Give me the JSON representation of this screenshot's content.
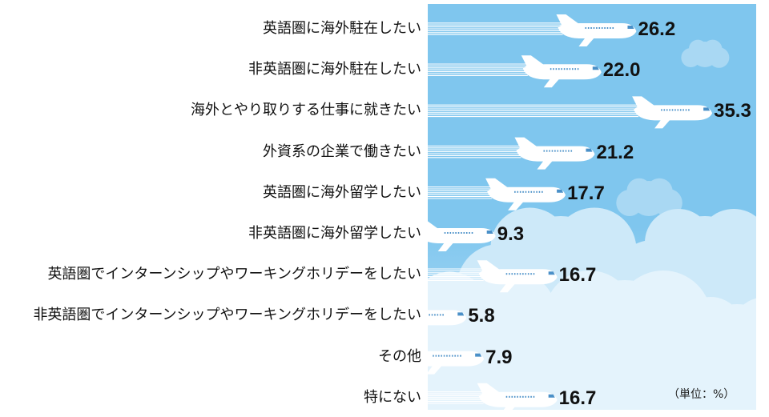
{
  "colors": {
    "sky_top": "#7fc6ee",
    "sky_bottom": "#bfe3f8",
    "cloud": "#cde9f9",
    "cloud_light": "#e4f3fc",
    "plane": "#ffffff",
    "plane_window": "#4a90c8",
    "trail": "#ffffff",
    "text": "#111111"
  },
  "unit_note": "（単位：%）",
  "chart_data": {
    "type": "bar",
    "orientation": "horizontal",
    "unit": "%",
    "xlim": [
      0,
      36
    ],
    "categories": [
      "英語圏に海外駐在したい",
      "非英語圏に海外駐在したい",
      "海外とやり取りする仕事に就きたい",
      "外資系の企業で働きたい",
      "英語圏に海外留学したい",
      "非英語圏に海外留学したい",
      "英語圏でインターンシップやワーキングホリデーをしたい",
      "非英語圏でインターンシップやワーキングホリデーをしたい",
      "その他",
      "特にない"
    ],
    "values": [
      26.2,
      22.0,
      35.3,
      21.2,
      17.7,
      9.3,
      16.7,
      5.8,
      7.9,
      16.7
    ],
    "value_labels": [
      "26.2",
      "22.0",
      "35.3",
      "21.2",
      "17.7",
      "9.3",
      "16.7",
      "5.8",
      "7.9",
      "16.7"
    ]
  }
}
